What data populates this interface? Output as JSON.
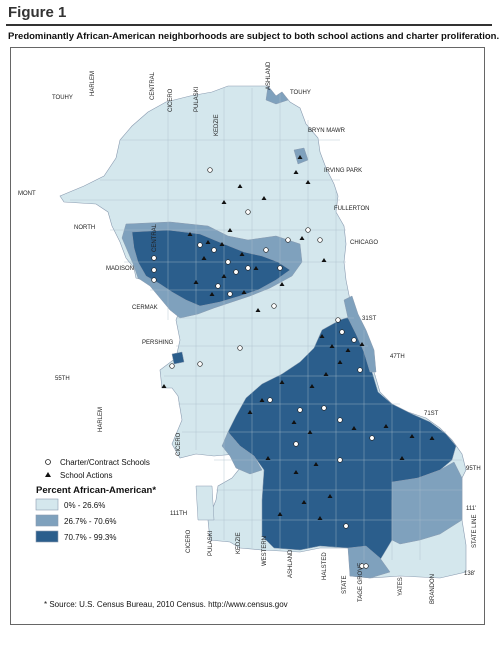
{
  "figure_title": "Figure 1",
  "subtitle": "Predominantly African-American neighborhoods are subject to both school actions and charter proliferation.",
  "colors": {
    "low": "#d4e7ed",
    "mid": "#7fa1bd",
    "high": "#2b5e8c",
    "border": "#8a9bb0",
    "text": "#222222"
  },
  "legend": {
    "charter_label": "Charter/Contract Schools",
    "actions_label": "School Actions",
    "percent_title": "Percent African-American*",
    "classes": [
      {
        "label": "0% - 26.6%",
        "color": "#d4e7ed"
      },
      {
        "label": "26.7% - 70.6%",
        "color": "#7fa1bd"
      },
      {
        "label": "70.7% - 99.3%",
        "color": "#2b5e8c"
      }
    ]
  },
  "source": "* Source: U.S. Census Bureau, 2010 Census.  http://www.census.gov",
  "street_labels": {
    "touhy_w": "TOUHY",
    "harlem_n": "HARLEM",
    "central_n": "CENTRAL",
    "cicero_n": "CICERO",
    "pulaski_n": "PULASKI",
    "kedzie_n": "KEDZIE",
    "ashland_n": "ASHLAND",
    "touhy_e": "TOUHY",
    "bryn_mawr": "BRYN MAWR",
    "irving_park": "IRVING PARK",
    "mont": "MONT",
    "fullerton": "FULLERTON",
    "north": "NORTH",
    "chicago": "CHICAGO",
    "central_mid": "CENTRAL",
    "madison": "MADISON",
    "cermak": "CERMAK",
    "st31": "31ST",
    "pershing": "PERSHING",
    "st47": "47TH",
    "st55": "55TH",
    "st71": "71ST",
    "harlem_s": "HARLEM",
    "cicero_s": "CICERO",
    "st95": "95TH",
    "st111_w": "111TH",
    "st111_e": "111'",
    "state_line": "STATE LINE",
    "st138": "138'",
    "cicero_b": "CICERO",
    "pulaski_b": "PULASKI",
    "kedzie_b": "KEDZIE",
    "western_b": "WESTERN",
    "ashland_b": "ASHLAND",
    "halsted_b": "HALSTED",
    "state_b": "STATE",
    "tage_grove_b": "TAGE GROVE",
    "yates_b": "YATES",
    "brandon_b": "BRANDON"
  }
}
